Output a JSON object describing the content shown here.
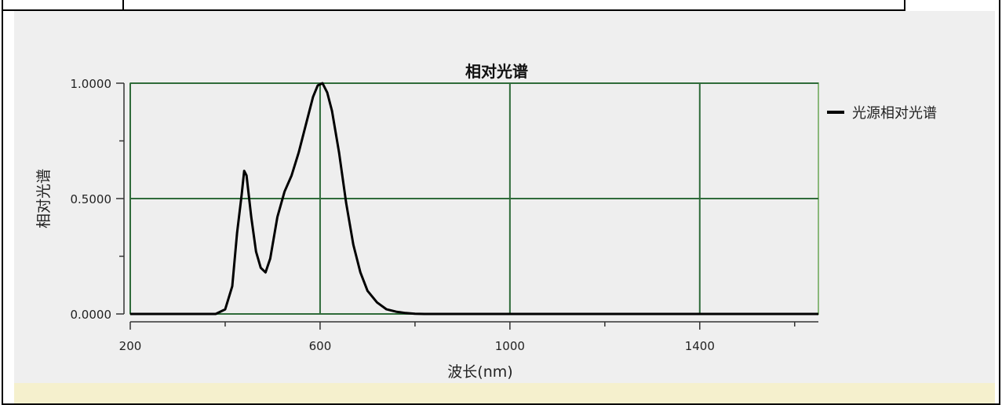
{
  "chart_data": {
    "type": "line",
    "title": "相对光谱",
    "xlabel": "波长(nm)",
    "ylabel": "相对光谱",
    "xlim": [
      200,
      1650
    ],
    "ylim": [
      0,
      1
    ],
    "x_ticks": [
      "200",
      "600",
      "1000",
      "1400"
    ],
    "y_ticks": [
      "0.0000",
      "0.5000",
      "1.0000"
    ],
    "grid": true,
    "legend_position": "right",
    "series": [
      {
        "name": "光源相对光谱",
        "color": "#000000",
        "x": [
          200,
          380,
          400,
          415,
          425,
          435,
          440,
          445,
          455,
          465,
          475,
          485,
          495,
          510,
          525,
          540,
          555,
          570,
          585,
          595,
          605,
          615,
          625,
          640,
          655,
          670,
          685,
          700,
          720,
          740,
          760,
          780,
          800,
          820,
          1650
        ],
        "y": [
          0.0,
          0.0,
          0.02,
          0.12,
          0.35,
          0.52,
          0.62,
          0.6,
          0.42,
          0.27,
          0.2,
          0.18,
          0.24,
          0.42,
          0.53,
          0.6,
          0.7,
          0.82,
          0.94,
          0.99,
          1.0,
          0.96,
          0.88,
          0.7,
          0.48,
          0.3,
          0.18,
          0.1,
          0.05,
          0.02,
          0.01,
          0.004,
          0.001,
          0.0,
          0.0
        ]
      }
    ]
  }
}
